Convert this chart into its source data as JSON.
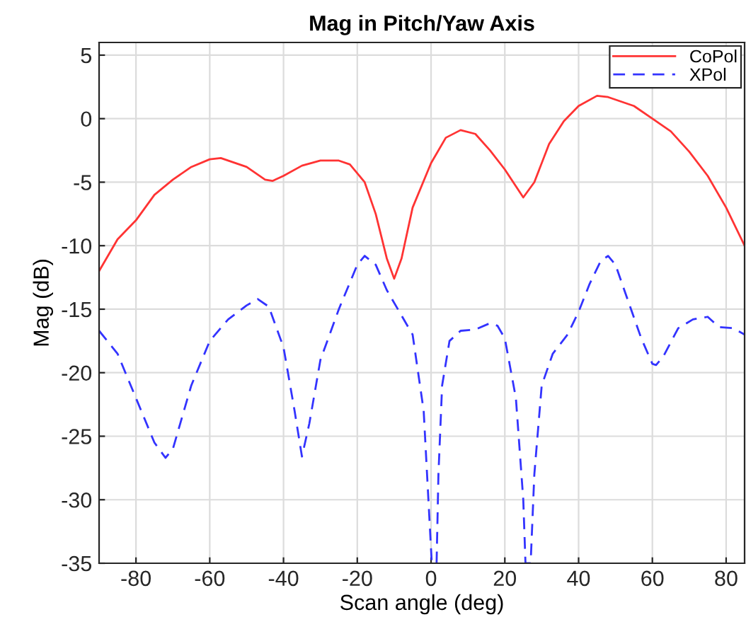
{
  "chart_data": {
    "type": "line",
    "title": "Mag in Pitch/Yaw Axis",
    "xlabel": "Scan angle (deg)",
    "ylabel": "Mag (dB)",
    "xlim": [
      -90,
      85
    ],
    "xticks": [
      -80,
      -60,
      -40,
      -20,
      0,
      20,
      40,
      60,
      80
    ],
    "ylim": [
      -35,
      6
    ],
    "yticks": [
      -35,
      -30,
      -25,
      -20,
      -15,
      -10,
      -5,
      0,
      5
    ],
    "grid": true,
    "legend": "top right",
    "series": [
      {
        "name": "CoPol",
        "color": "#ff3333",
        "line_style": "solid",
        "x": [
          -90,
          -85,
          -80,
          -75,
          -70,
          -65,
          -60,
          -57,
          -50,
          -45,
          -43,
          -40,
          -35,
          -30,
          -25,
          -22,
          -18,
          -15,
          -12,
          -10,
          -8,
          -5,
          0,
          4,
          8,
          12,
          16,
          20,
          25,
          28,
          32,
          36,
          40,
          45,
          48,
          55,
          60,
          65,
          70,
          75,
          80,
          85
        ],
        "values": [
          -12,
          -9.5,
          -8,
          -6,
          -4.8,
          -3.8,
          -3.2,
          -3.1,
          -3.8,
          -4.8,
          -4.9,
          -4.5,
          -3.7,
          -3.3,
          -3.3,
          -3.6,
          -5,
          -7.5,
          -11,
          -12.6,
          -11,
          -7,
          -3.5,
          -1.5,
          -0.9,
          -1.2,
          -2.5,
          -4,
          -6.2,
          -5,
          -2,
          -0.2,
          1,
          1.8,
          1.7,
          1,
          0,
          -1,
          -2.6,
          -4.5,
          -7,
          -10
        ]
      },
      {
        "name": "XPol",
        "color": "#3333ff",
        "line_style": "dashed",
        "x": [
          -90,
          -85,
          -80,
          -75,
          -72,
          -70,
          -65,
          -60,
          -55,
          -50,
          -47,
          -44,
          -40,
          -37,
          -35,
          -33,
          -30,
          -25,
          -20,
          -18,
          -15,
          -12,
          -8,
          -5,
          -2,
          0.2,
          1.5,
          2,
          3,
          5,
          8,
          12,
          16,
          18,
          20,
          23,
          25,
          25.6,
          27,
          28,
          30,
          33,
          37,
          40,
          43,
          46,
          48,
          50,
          53,
          57,
          60,
          61,
          63,
          67,
          71,
          75,
          78,
          82,
          85
        ],
        "values": [
          -16.7,
          -18.5,
          -22,
          -25.5,
          -26.7,
          -26,
          -21,
          -17.5,
          -15.8,
          -14.7,
          -14.2,
          -14.8,
          -18,
          -23,
          -26.6,
          -24,
          -19,
          -15,
          -11.5,
          -10.8,
          -11.5,
          -13.5,
          -15.5,
          -17,
          -23,
          -35,
          -35,
          -28,
          -21,
          -17.5,
          -16.7,
          -16.6,
          -16.1,
          -16.3,
          -17.3,
          -22,
          -30,
          -35,
          -35,
          -28,
          -21,
          -18.5,
          -17,
          -15.2,
          -13,
          -11.2,
          -10.8,
          -11.5,
          -14,
          -17.3,
          -19.3,
          -19.4,
          -18.7,
          -16.5,
          -15.8,
          -15.6,
          -16.4,
          -16.5,
          -17
        ]
      }
    ]
  }
}
